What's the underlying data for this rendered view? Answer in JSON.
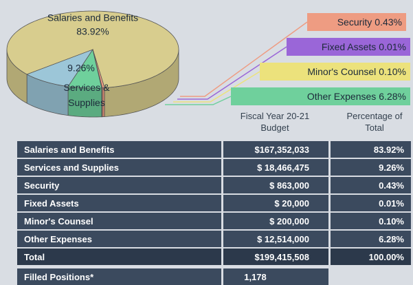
{
  "chart_data": {
    "type": "pie",
    "categories": [
      "Salaries and Benefits",
      "Services & Supplies",
      "Other Expenses",
      "Minor's Counsel",
      "Fixed Assets",
      "Security"
    ],
    "values": [
      83.92,
      9.26,
      6.28,
      0.1,
      0.01,
      0.43
    ],
    "value_labels": [
      "83.92%",
      "9.26%",
      "6.28%",
      "0.10%",
      "0.01%",
      "0.43%"
    ],
    "colors": [
      "#d8cd8e",
      "#9cc6d8",
      "#6fd09c",
      "#ece27c",
      "#9a66d8",
      "#ee9c82"
    ]
  },
  "table": {
    "header": [
      "Fiscal Year 20-21 Budget",
      "Percentage of Total"
    ],
    "rows": [
      [
        "Salaries and Benefits",
        "$167,352,033",
        "83.92%"
      ],
      [
        "Services and Supplies",
        "$ 18,466,475",
        "9.26%"
      ],
      [
        "Security",
        "$ 863,000",
        "0.43%"
      ],
      [
        "Fixed Assets",
        "$ 20,000",
        "0.01%"
      ],
      [
        "Minor's Counsel",
        "$ 200,000",
        "0.10%"
      ],
      [
        "Other Expenses",
        "$ 12,514,000",
        "6.28%"
      ],
      [
        "Total",
        "$199,415,508",
        "100.00%"
      ]
    ],
    "footer": [
      "Filled Positions*",
      "1,178"
    ]
  }
}
